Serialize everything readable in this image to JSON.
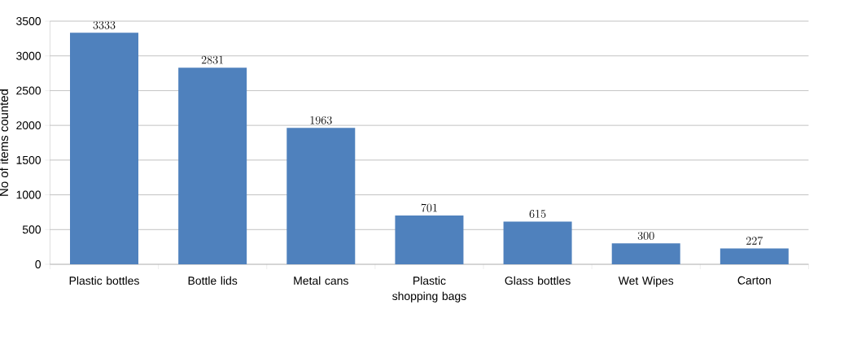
{
  "chart_data": {
    "type": "bar",
    "categories": [
      "Plastic bottles",
      "Bottle lids",
      "Metal cans",
      "Plastic shopping bags",
      "Glass bottles",
      "Wet Wipes",
      "Carton"
    ],
    "values": [
      3333,
      2831,
      1963,
      701,
      615,
      300,
      227
    ],
    "color": "#4f81bd",
    "ylabel": "No of items counted",
    "ylim": [
      0,
      3500
    ],
    "yticks": [
      0,
      500,
      1000,
      1500,
      2000,
      2500,
      3000,
      3500
    ],
    "grid": "y",
    "data_labels": true
  }
}
